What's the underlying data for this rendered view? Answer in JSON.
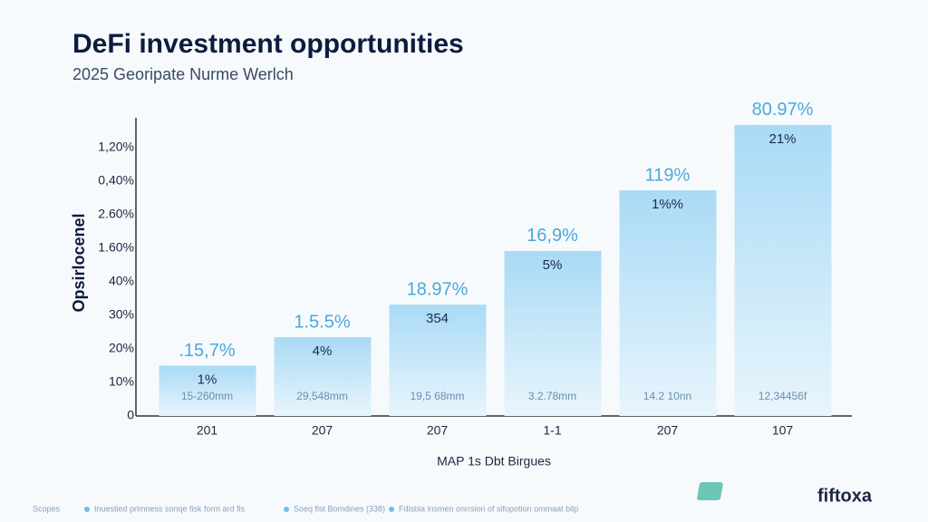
{
  "chart_data": {
    "type": "bar",
    "title": "DeFi investment opportunities",
    "subtitle": "2025 Georipate Nurme Werlch",
    "y_label": "Opsirlocenel",
    "x_label": "MAP 1s Dbt Birgues",
    "categories": [
      "201",
      "207",
      "207",
      "1-1",
      "207",
      "107"
    ],
    "values": [
      15,
      23.5,
      33.2,
      49.2,
      67.3,
      86.8
    ],
    "top_labels": [
      ".15,7%",
      "1.5.5%",
      "18.97%",
      "16,9%",
      "119%",
      "80.97%"
    ],
    "inner_labels": [
      "1%",
      "4%",
      "354",
      "5%",
      "1%%",
      "21%"
    ],
    "bottom_labels": [
      "15-260mm",
      "29,548mm",
      "19,5 68mm",
      "3.2.78mm",
      "14.2 10nn",
      "12,34456f"
    ],
    "color": "#aedcf5",
    "ylim": [
      0,
      90
    ],
    "yticks": [
      0,
      {
        "value": 10,
        "label": "10%"
      },
      {
        "value": 20,
        "label": "20%"
      },
      {
        "value": 30,
        "label": "30%"
      },
      {
        "value": 40,
        "label": "40%"
      },
      {
        "value": 50,
        "label": "1.60%"
      },
      {
        "value": 60,
        "label": "2.60%"
      },
      {
        "value": 70,
        "label": "0,40%"
      },
      {
        "value": 80,
        "label": "1,20%"
      }
    ],
    "logo": "fiftoxa",
    "footer": [
      "Scopes",
      "Inuestied primness sonqe fisk form ard fis",
      "Soeq fist Bomdines (338)",
      "Fdisbla insmen onrrsion of sifopotion ommaat bilp"
    ]
  }
}
